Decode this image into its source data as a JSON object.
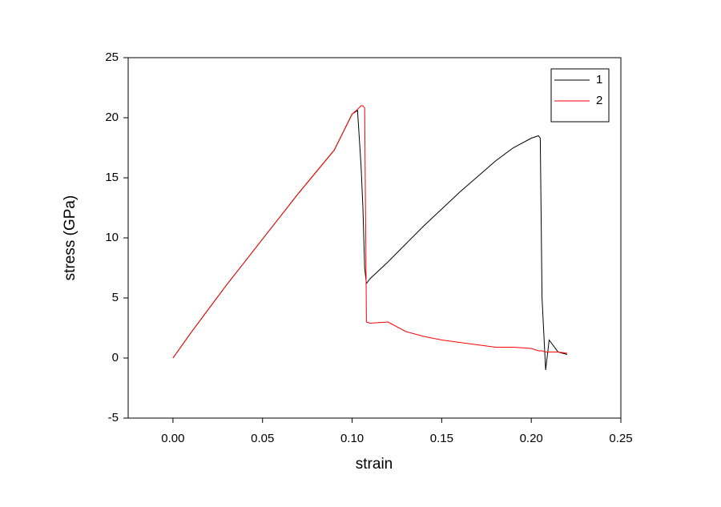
{
  "chart_data": {
    "type": "line",
    "x_label": "strain",
    "y_label": "stress (GPa)",
    "x": [
      0,
      0.01,
      0.02,
      0.03,
      0.04,
      0.05,
      0.06,
      0.07,
      0.08,
      0.09,
      0.1,
      0.103,
      0.105,
      0.106,
      0.107,
      0.108,
      0.11,
      0.12,
      0.13,
      0.14,
      0.15,
      0.16,
      0.17,
      0.18,
      0.19,
      0.2,
      0.204,
      0.205,
      0.206,
      0.208,
      0.21,
      0.215,
      0.22
    ],
    "series": [
      {
        "name": "1",
        "color": "#000000",
        "values": [
          0,
          2.1,
          4.1,
          6.1,
          8.0,
          9.9,
          11.8,
          13.7,
          15.5,
          17.3,
          20.3,
          20.6,
          16.0,
          12.5,
          7.5,
          6.2,
          6.6,
          8.0,
          9.5,
          11.0,
          12.4,
          13.8,
          15.1,
          16.4,
          17.5,
          18.3,
          18.5,
          18.3,
          5.0,
          -1.0,
          1.5,
          0.5,
          0.3
        ]
      },
      {
        "name": "2",
        "color": "#ff0000",
        "values": [
          0,
          2.1,
          4.1,
          6.1,
          8.0,
          9.9,
          11.8,
          13.7,
          15.5,
          17.3,
          20.3,
          20.7,
          21.0,
          21.0,
          20.8,
          3.0,
          2.9,
          3.0,
          2.2,
          1.8,
          1.5,
          1.3,
          1.1,
          0.9,
          0.9,
          0.8,
          0.6,
          0.6,
          0.6,
          0.5,
          0.5,
          0.5,
          0.4
        ]
      }
    ],
    "xlim": [
      -0.025,
      0.25
    ],
    "xticks": [
      {
        "value": 0,
        "label": "0.00"
      },
      {
        "value": 0.05,
        "label": "0.05"
      },
      {
        "value": 0.1,
        "label": "0.10"
      },
      {
        "value": 0.15,
        "label": "0.15"
      },
      {
        "value": 0.2,
        "label": "0.20"
      },
      {
        "value": 0.25,
        "label": "0.25"
      }
    ],
    "ylim": [
      -5,
      25
    ],
    "yticks": [
      -5,
      0,
      5,
      10,
      15,
      20,
      25
    ],
    "grid": false,
    "legend": "top-right"
  }
}
